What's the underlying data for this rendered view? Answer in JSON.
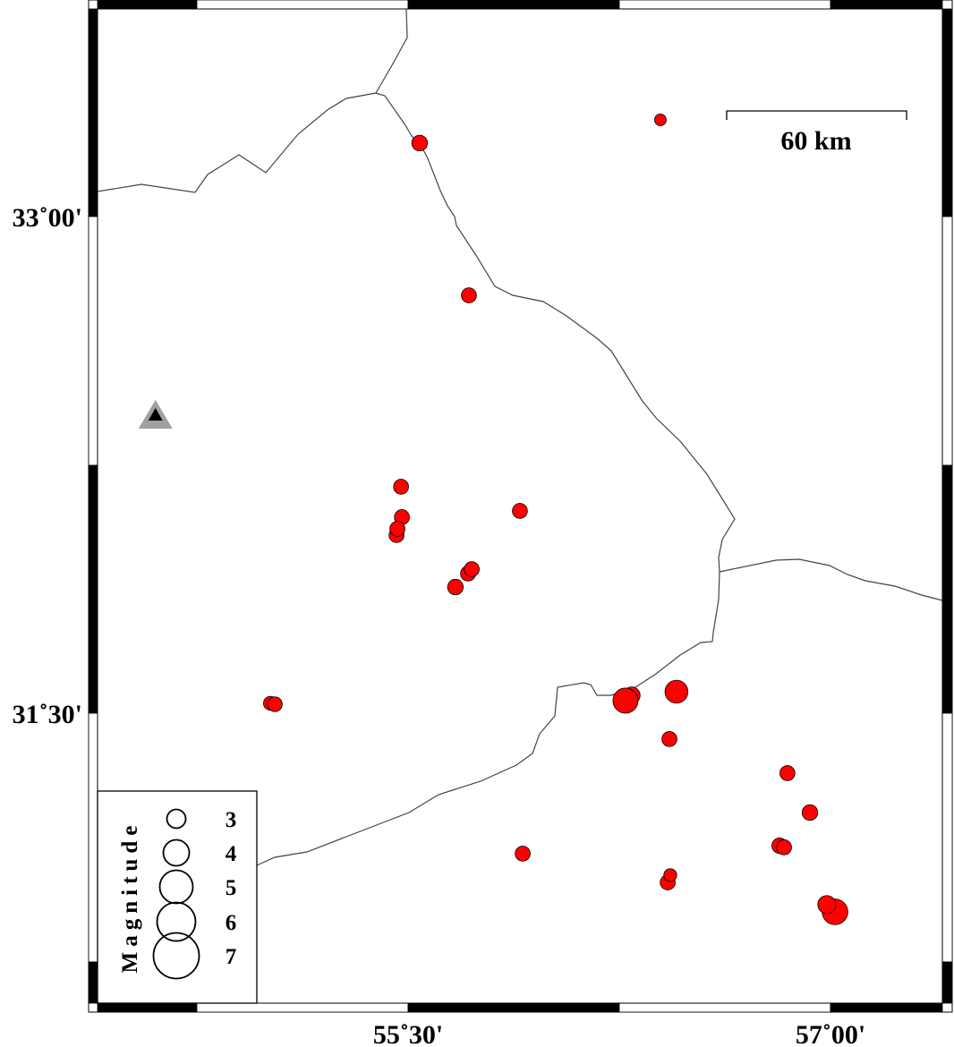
{
  "map": {
    "lon_range": [
      54.4,
      57.4
    ],
    "lat_range": [
      30.45,
      33.65
    ],
    "lat_ticks": [
      {
        "value": 33.0,
        "label": "33˚00'"
      },
      {
        "value": 31.5,
        "label": "31˚30'"
      }
    ],
    "lon_ticks": [
      {
        "value": 55.5,
        "label": "55˚30'"
      },
      {
        "value": 57.0,
        "label": "57˚00'"
      }
    ],
    "scale_bar": {
      "label": "60 km",
      "length_km": 60
    },
    "colors": {
      "event_fill": "#ff0000",
      "event_stroke": "#000000",
      "border": "#444444",
      "station_outer": "#a0a0a0",
      "station_inner": "#000000"
    }
  },
  "legend": {
    "title": "Magnitude",
    "entries": [
      {
        "mag": 3,
        "label": "3"
      },
      {
        "mag": 4,
        "label": "4"
      },
      {
        "mag": 5,
        "label": "5"
      },
      {
        "mag": 6,
        "label": "6"
      },
      {
        "mag": 7,
        "label": "7"
      }
    ]
  },
  "station": {
    "lon": 54.603,
    "lat": 32.4,
    "icon": "triangle-icon"
  },
  "events": [
    {
      "lon": 56.396,
      "lat": 33.292,
      "mag": 1.9
    },
    {
      "lon": 55.541,
      "lat": 33.222,
      "mag": 3.2
    },
    {
      "lon": 55.716,
      "lat": 32.762,
      "mag": 3.0
    },
    {
      "lon": 55.475,
      "lat": 32.184,
      "mag": 3.0
    },
    {
      "lon": 55.478,
      "lat": 32.092,
      "mag": 3.0
    },
    {
      "lon": 55.459,
      "lat": 32.038,
      "mag": 3.0
    },
    {
      "lon": 55.462,
      "lat": 32.057,
      "mag": 3.0
    },
    {
      "lon": 55.897,
      "lat": 32.111,
      "mag": 3.0
    },
    {
      "lon": 55.713,
      "lat": 31.922,
      "mag": 3.0
    },
    {
      "lon": 55.726,
      "lat": 31.935,
      "mag": 3.0
    },
    {
      "lon": 55.668,
      "lat": 31.881,
      "mag": 3.2
    },
    {
      "lon": 55.011,
      "lat": 31.53,
      "mag": 2.6
    },
    {
      "lon": 55.027,
      "lat": 31.527,
      "mag": 2.9
    },
    {
      "lon": 56.294,
      "lat": 31.554,
      "mag": 3.6
    },
    {
      "lon": 56.272,
      "lat": 31.538,
      "mag": 6.3
    },
    {
      "lon": 56.453,
      "lat": 31.565,
      "mag": 5.6
    },
    {
      "lon": 56.428,
      "lat": 31.422,
      "mag": 3.0
    },
    {
      "lon": 56.847,
      "lat": 31.319,
      "mag": 3.0
    },
    {
      "lon": 56.927,
      "lat": 31.2,
      "mag": 3.2
    },
    {
      "lon": 56.819,
      "lat": 31.1,
      "mag": 3.1
    },
    {
      "lon": 56.835,
      "lat": 31.095,
      "mag": 3.0
    },
    {
      "lon": 55.907,
      "lat": 31.076,
      "mag": 3.0
    },
    {
      "lon": 56.422,
      "lat": 30.989,
      "mag": 3.0
    },
    {
      "lon": 56.431,
      "lat": 31.011,
      "mag": 2.3
    },
    {
      "lon": 57.016,
      "lat": 30.9,
      "mag": 6.5
    },
    {
      "lon": 56.987,
      "lat": 30.922,
      "mag": 4.0
    }
  ]
}
